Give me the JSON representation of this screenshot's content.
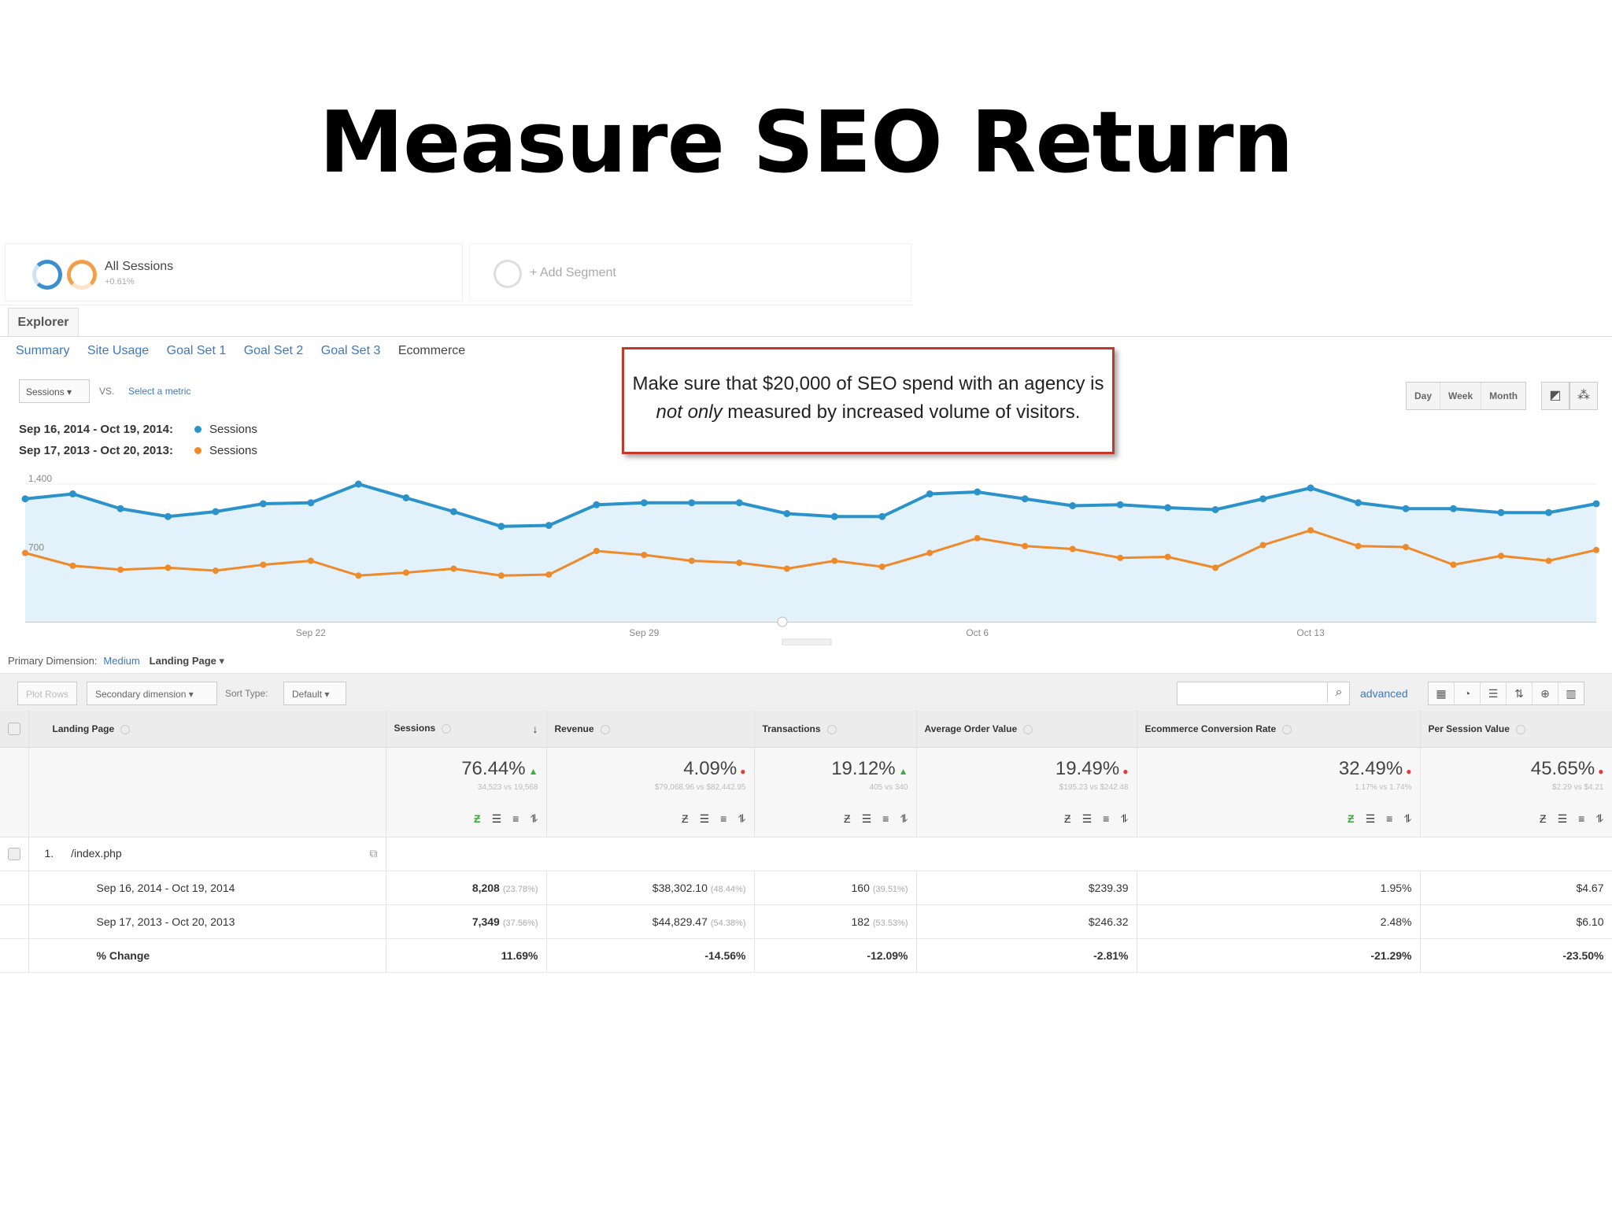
{
  "slide_title": "Measure SEO Return",
  "segments": {
    "all_sessions": "All Sessions",
    "all_sessions_sub": "+0.61%",
    "add_segment": "+ Add Segment"
  },
  "tabs": {
    "explorer": "Explorer"
  },
  "subtabs": [
    "Summary",
    "Site Usage",
    "Goal Set 1",
    "Goal Set 2",
    "Goal Set 3",
    "Ecommerce"
  ],
  "metric_selector": {
    "primary": "Sessions",
    "vs": "VS.",
    "select": "Select a metric"
  },
  "legend": [
    {
      "range": "Sep 16, 2014 - Oct 19, 2014:",
      "metric": "Sessions",
      "color": "#2b93c9"
    },
    {
      "range": "Sep 17, 2013 - Oct 20, 2013:",
      "metric": "Sessions",
      "color": "#ee8a2a"
    }
  ],
  "callout": {
    "line1": "Make sure that $20,000 of SEO spend with an agency is",
    "line2_em": "not only",
    "line2_rest": " measured by increased volume of visitors."
  },
  "period_buttons": [
    "Day",
    "Week",
    "Month"
  ],
  "chart_data": {
    "type": "line",
    "x_tick_labels": [
      "Sep 22",
      "Sep 29",
      "Oct 6",
      "Oct 13"
    ],
    "y_tick_labels": [
      "1,400",
      "700"
    ],
    "ylim": [
      0,
      1400
    ],
    "series": [
      {
        "name": "Sessions",
        "color": "#2b93c9",
        "values": [
          1250,
          1300,
          1150,
          1070,
          1120,
          1200,
          1210,
          1400,
          1260,
          1120,
          970,
          980,
          1190,
          1210,
          1210,
          1210,
          1100,
          1070,
          1070,
          1300,
          1320,
          1250,
          1180,
          1190,
          1160,
          1140,
          1250,
          1360,
          1210,
          1150,
          1150,
          1110,
          1110,
          1200
        ]
      },
      {
        "name": "Sessions",
        "color": "#ee8a2a",
        "values": [
          700,
          570,
          530,
          550,
          520,
          580,
          620,
          470,
          500,
          540,
          470,
          480,
          720,
          680,
          620,
          600,
          540,
          620,
          560,
          700,
          850,
          770,
          740,
          650,
          660,
          550,
          780,
          930,
          770,
          760,
          580,
          670,
          620,
          730
        ]
      }
    ]
  },
  "primary_dimension": {
    "label": "Primary Dimension:",
    "medium": "Medium",
    "landing_page": "Landing Page"
  },
  "toolbar": {
    "plot_rows": "Plot Rows",
    "secondary_dimension": "Secondary dimension",
    "sort_type_label": "Sort Type:",
    "sort_default": "Default",
    "advanced": "advanced"
  },
  "table": {
    "headers": [
      "Landing Page",
      "Sessions",
      "Revenue",
      "Transactions",
      "Average Order Value",
      "Ecommerce Conversion Rate",
      "Per Session Value"
    ],
    "summary": [
      {
        "pct": "76.44%",
        "dir": "up",
        "sub": "34,523 vs 19,568"
      },
      {
        "pct": "4.09%",
        "dir": "down",
        "sub": "$79,068.96 vs $82,442.95"
      },
      {
        "pct": "19.12%",
        "dir": "up",
        "sub": "405 vs 340"
      },
      {
        "pct": "19.49%",
        "dir": "down",
        "sub": "$195.23 vs $242.48"
      },
      {
        "pct": "32.49%",
        "dir": "down",
        "sub": "1.17% vs 1.74%"
      },
      {
        "pct": "45.65%",
        "dir": "down",
        "sub": "$2.29 vs $4.21"
      }
    ],
    "row_index": "1.",
    "row_page": "/index.php",
    "rows": [
      {
        "label": "Sep 16, 2014 - Oct 19, 2014",
        "cells": [
          {
            "v": "8,208",
            "p": "(23.78%)"
          },
          {
            "v": "$38,302.10",
            "p": "(48.44%)"
          },
          {
            "v": "160",
            "p": "(39.51%)"
          },
          {
            "v": "$239.39",
            "p": ""
          },
          {
            "v": "1.95%",
            "p": ""
          },
          {
            "v": "$4.67",
            "p": ""
          }
        ]
      },
      {
        "label": "Sep 17, 2013 - Oct 20, 2013",
        "cells": [
          {
            "v": "7,349",
            "p": "(37.56%)"
          },
          {
            "v": "$44,829.47",
            "p": "(54.38%)"
          },
          {
            "v": "182",
            "p": "(53.53%)"
          },
          {
            "v": "$246.32",
            "p": ""
          },
          {
            "v": "2.48%",
            "p": ""
          },
          {
            "v": "$6.10",
            "p": ""
          }
        ]
      },
      {
        "label": "% Change",
        "cells": [
          {
            "v": "11.69%",
            "p": ""
          },
          {
            "v": "-14.56%",
            "p": ""
          },
          {
            "v": "-12.09%",
            "p": ""
          },
          {
            "v": "-2.81%",
            "p": ""
          },
          {
            "v": "-21.29%",
            "p": ""
          },
          {
            "v": "-23.50%",
            "p": ""
          }
        ]
      }
    ]
  }
}
